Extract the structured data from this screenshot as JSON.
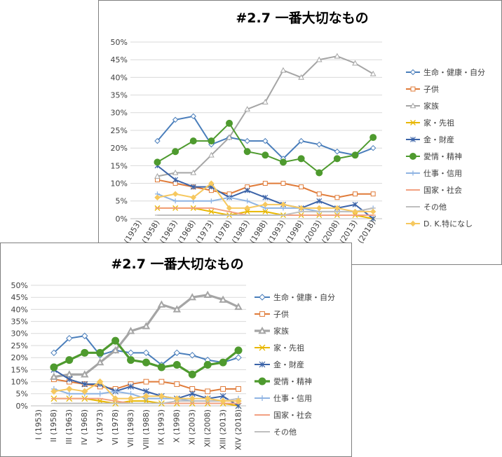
{
  "chart_data": [
    {
      "type": "line",
      "title": "#2.7 一番大切なもの",
      "xlabel": "",
      "ylabel": "",
      "ylim": [
        0,
        50
      ],
      "y_ticks": [
        "0%",
        "5%",
        "10%",
        "15%",
        "20%",
        "25%",
        "30%",
        "35%",
        "40%",
        "45%",
        "50%"
      ],
      "categories": [
        "(1953)",
        "(1958)",
        "(1963)",
        "(1968)",
        "(1973)",
        "(1978)",
        "(1983)",
        "(1988)",
        "(1993)",
        "(1998)",
        "(2003)",
        "(2008)",
        "(2013)",
        "(2018)"
      ],
      "grid": true,
      "legend": "right",
      "series": [
        {
          "name": "生命・健康・自分",
          "color": "#4a7ebb",
          "marker": "diamond-open",
          "values": [
            null,
            22,
            28,
            29,
            21,
            23,
            22,
            22,
            17,
            22,
            21,
            19,
            18,
            20
          ]
        },
        {
          "name": "子供",
          "color": "#e07b39",
          "marker": "square-open",
          "values": [
            null,
            11,
            10,
            9,
            8,
            7,
            9,
            10,
            10,
            9,
            7,
            6,
            7,
            7
          ]
        },
        {
          "name": "家族",
          "color": "#a5a5a5",
          "marker": "triangle-open",
          "values": [
            null,
            12,
            13,
            13,
            18,
            23,
            31,
            33,
            42,
            40,
            45,
            46,
            44,
            41
          ]
        },
        {
          "name": "家・先祖",
          "color": "#e8b700",
          "marker": "x",
          "values": [
            null,
            3,
            3,
            3,
            2,
            1,
            2,
            2,
            1,
            1,
            1,
            1,
            1,
            0
          ]
        },
        {
          "name": "金・財産",
          "color": "#3b63a8",
          "marker": "star",
          "values": [
            null,
            15,
            11,
            9,
            9,
            6,
            8,
            6,
            4,
            3,
            5,
            3,
            4,
            0
          ]
        },
        {
          "name": "愛情・精神",
          "color": "#4e9a2e",
          "marker": "circle",
          "values": [
            null,
            16,
            19,
            22,
            22,
            27,
            19,
            18,
            16,
            17,
            13,
            17,
            18,
            23
          ]
        },
        {
          "name": "仕事・信用",
          "color": "#8fb4e3",
          "marker": "plus",
          "values": [
            null,
            7,
            5,
            5,
            5,
            6,
            5,
            3,
            3,
            3,
            2,
            2,
            2,
            3
          ]
        },
        {
          "name": "国家・社会",
          "color": "#f2a081",
          "marker": "dash",
          "values": [
            null,
            3,
            3,
            3,
            3,
            2,
            1,
            1,
            1,
            1,
            1,
            1,
            1,
            1
          ]
        },
        {
          "name": "その他",
          "color": "#bfbfbf",
          "marker": "dash",
          "values": [
            null,
            1,
            1,
            1,
            1,
            1,
            1,
            1,
            1,
            2,
            2,
            2,
            2,
            3
          ]
        },
        {
          "name": "D. K.特になし",
          "color": "#f6c85f",
          "marker": "diamond",
          "values": [
            null,
            6,
            7,
            6,
            10,
            3,
            3,
            4,
            4,
            3,
            3,
            3,
            2,
            2
          ]
        }
      ]
    },
    {
      "type": "line",
      "title": "#2.7 一番大切なもの",
      "xlabel": "",
      "ylabel": "",
      "ylim": [
        0,
        50
      ],
      "y_ticks": [
        "0%",
        "5%",
        "10%",
        "15%",
        "20%",
        "25%",
        "30%",
        "35%",
        "40%",
        "45%",
        "50%"
      ],
      "categories": [
        "I (1953)",
        "II (1958)",
        "III (1963)",
        "IV (1968)",
        "V (1973)",
        "VI (1978)",
        "VII (1983)",
        "VIII (1988)",
        "IX (1993)",
        "X (1998)",
        "XI (2003)",
        "XII (2008)",
        "XIII (2013)",
        "XIV (2018)"
      ],
      "grid": true,
      "legend": "right",
      "series": [
        {
          "name": "生命・健康・自分",
          "color": "#4a7ebb",
          "marker": "diamond-open",
          "values": [
            null,
            22,
            28,
            29,
            21,
            23,
            22,
            22,
            17,
            22,
            21,
            19,
            18,
            20
          ]
        },
        {
          "name": "子供",
          "color": "#e07b39",
          "marker": "square-open",
          "values": [
            null,
            11,
            10,
            9,
            8,
            7,
            9,
            10,
            10,
            9,
            7,
            6,
            7,
            7
          ]
        },
        {
          "name": "家族",
          "color": "#a5a5a5",
          "marker": "triangle-open-bold",
          "values": [
            null,
            12,
            13,
            13,
            18,
            23,
            31,
            33,
            42,
            40,
            45,
            46,
            44,
            41
          ]
        },
        {
          "name": "家・先祖",
          "color": "#e8b700",
          "marker": "x",
          "values": [
            null,
            3,
            3,
            3,
            2,
            1,
            2,
            2,
            1,
            1,
            1,
            1,
            1,
            0
          ]
        },
        {
          "name": "金・財産",
          "color": "#3b63a8",
          "marker": "star",
          "values": [
            null,
            15,
            11,
            9,
            9,
            6,
            8,
            6,
            4,
            3,
            5,
            3,
            4,
            0
          ]
        },
        {
          "name": "愛情・精神",
          "color": "#4e9a2e",
          "marker": "circle",
          "values": [
            null,
            16,
            19,
            22,
            22,
            27,
            19,
            18,
            16,
            17,
            13,
            17,
            18,
            23
          ]
        },
        {
          "name": "仕事・信用",
          "color": "#8fb4e3",
          "marker": "plus",
          "values": [
            null,
            7,
            5,
            5,
            5,
            6,
            5,
            3,
            3,
            3,
            2,
            2,
            2,
            3
          ]
        },
        {
          "name": "国家・社会",
          "color": "#f2a081",
          "marker": "dash",
          "values": [
            null,
            3,
            3,
            3,
            3,
            2,
            1,
            1,
            1,
            1,
            1,
            1,
            1,
            1
          ]
        },
        {
          "name": "その他",
          "color": "#bfbfbf",
          "marker": "dash",
          "values": [
            null,
            1,
            1,
            1,
            1,
            1,
            1,
            1,
            1,
            2,
            2,
            2,
            2,
            3
          ]
        },
        {
          "name": "",
          "color": "#f6c85f",
          "marker": "diamond",
          "values": [
            null,
            6,
            7,
            6,
            10,
            3,
            3,
            4,
            4,
            3,
            3,
            3,
            2,
            2
          ]
        }
      ]
    }
  ]
}
